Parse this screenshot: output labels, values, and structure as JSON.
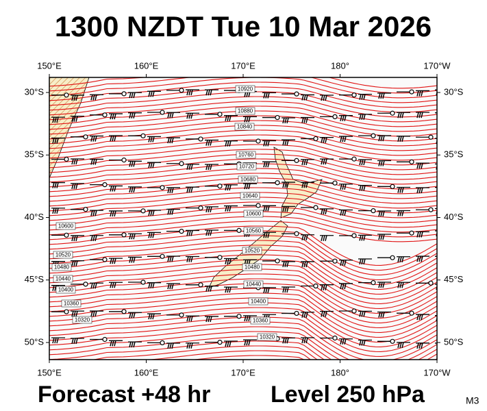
{
  "title": "1300 NZDT Tue 10 Mar 2026",
  "footer": {
    "forecast": "Forecast +48 hr",
    "level": "Level 250 hPa",
    "model": "M3"
  },
  "map": {
    "lon_labels": [
      "150°E",
      "160°E",
      "170°E",
      "180°",
      "170°W"
    ],
    "lat_labels": [
      "30°S",
      "35°S",
      "40°S",
      "45°S",
      "50°S"
    ],
    "contour_labels": [
      10920,
      10880,
      10840,
      10760,
      10720,
      10680,
      10640,
      10600,
      10560,
      10520,
      10480,
      10440,
      10400,
      10360,
      10320
    ],
    "left_contour_labels": [
      10600,
      10520,
      10480,
      10440,
      10400,
      10360,
      10320
    ]
  }
}
